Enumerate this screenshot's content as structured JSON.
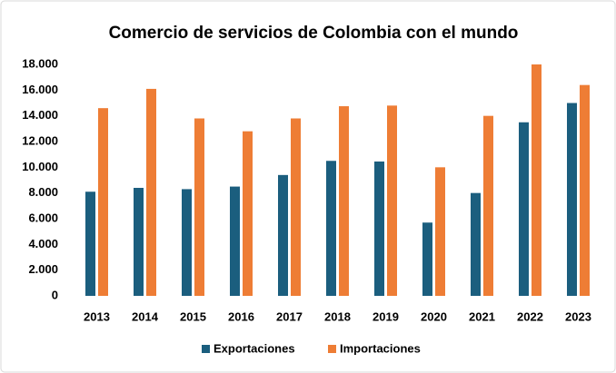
{
  "chart_data": {
    "type": "bar",
    "title": "Comercio de servicios de Colombia con el mundo",
    "categories": [
      "2013",
      "2014",
      "2015",
      "2016",
      "2017",
      "2018",
      "2019",
      "2020",
      "2021",
      "2022",
      "2023"
    ],
    "series": [
      {
        "name": "Exportaciones",
        "color": "#1b5e7e",
        "values": [
          8100,
          8400,
          8300,
          8500,
          9400,
          10500,
          10450,
          5700,
          8000,
          13500,
          15000
        ]
      },
      {
        "name": "Importaciones",
        "color": "#ee7d35",
        "values": [
          14600,
          16100,
          13800,
          12800,
          13800,
          14750,
          14800,
          10000,
          14000,
          18000,
          16400
        ]
      }
    ],
    "ylim": [
      0,
      18000
    ],
    "yticks": [
      0,
      {
        "value": 2000,
        "label": "2.000"
      },
      {
        "value": 4000,
        "label": "4.000"
      },
      {
        "value": 6000,
        "label": "6.000"
      },
      {
        "value": 8000,
        "label": "8.000"
      },
      {
        "value": 10000,
        "label": "10.000"
      },
      {
        "value": 12000,
        "label": "12.000"
      },
      {
        "value": 14000,
        "label": "14.000"
      },
      {
        "value": 16000,
        "label": "16.000"
      },
      {
        "value": 18000,
        "label": "18.000"
      }
    ],
    "grid": false,
    "legend": "bottom"
  }
}
